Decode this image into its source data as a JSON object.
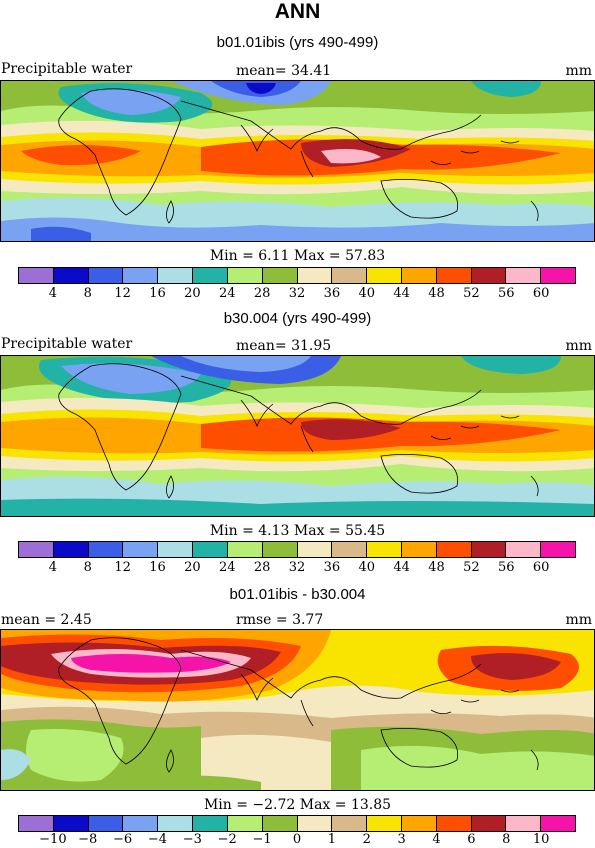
{
  "figure_title": "ANN",
  "panels": [
    {
      "title": "b01.01ibis (yrs 490-499)",
      "variable": "Precipitable water",
      "mean_text": "mean=   34.41",
      "units": "mm",
      "stats_text": "Min =    6.11  Max =   57.83",
      "colorbar_labels": [
        "4",
        "8",
        "12",
        "16",
        "20",
        "24",
        "28",
        "32",
        "36",
        "40",
        "44",
        "48",
        "52",
        "56",
        "60"
      ]
    },
    {
      "title": "b30.004 (yrs 490-499)",
      "variable": "Precipitable water",
      "mean_text": "mean=   31.95",
      "units": "mm",
      "stats_text": "Min =    4.13  Max =   55.45",
      "colorbar_labels": [
        "4",
        "8",
        "12",
        "16",
        "20",
        "24",
        "28",
        "32",
        "36",
        "40",
        "44",
        "48",
        "52",
        "56",
        "60"
      ]
    },
    {
      "title": "b01.01ibis - b30.004",
      "mean_text": "mean =    2.45",
      "rmse_text": "rmse =    3.77",
      "units": "mm",
      "stats_text": "Min =  −2.72  Max =   13.85",
      "colorbar_labels": [
        "−10",
        "−8",
        "−6",
        "−4",
        "−3",
        "−2",
        "−1",
        "0",
        "1",
        "2",
        "3",
        "4",
        "6",
        "8",
        "10"
      ]
    }
  ],
  "colors": {
    "abs_scale": [
      "#9c6fd6",
      "#0a0ac8",
      "#3a5fe6",
      "#79a3f2",
      "#acdee6",
      "#22b2a6",
      "#b6ee73",
      "#8ebd3a",
      "#f4e9c0",
      "#d9b98a",
      "#f9e300",
      "#fea500",
      "#fe4f00",
      "#b01e26",
      "#fcb8c8",
      "#f513a9"
    ],
    "diff_scale": [
      "#9c6fd6",
      "#0a0ac8",
      "#3a5fe6",
      "#79a3f2",
      "#acdee6",
      "#22b2a6",
      "#b6ee73",
      "#8ebd3a",
      "#f4e9c0",
      "#d9b98a",
      "#f9e300",
      "#fea500",
      "#fe4f00",
      "#b01e26",
      "#fcb8c8",
      "#f513a9"
    ]
  }
}
